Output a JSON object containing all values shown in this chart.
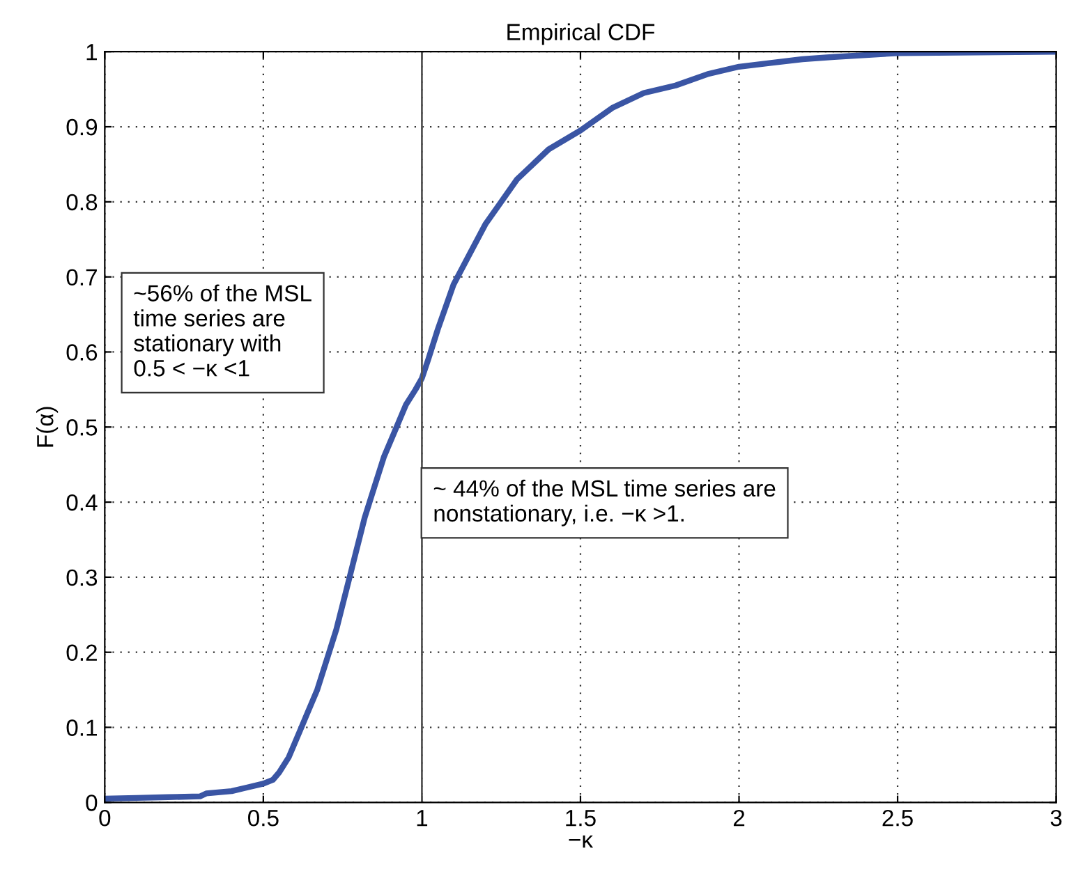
{
  "chart_data": {
    "type": "line",
    "title": "Empirical CDF",
    "xlabel": "−κ",
    "ylabel": "F(α)",
    "x": [
      0,
      0.1,
      0.2,
      0.3,
      0.32,
      0.4,
      0.45,
      0.5,
      0.53,
      0.55,
      0.58,
      0.6,
      0.62,
      0.64,
      0.67,
      0.7,
      0.73,
      0.76,
      0.79,
      0.82,
      0.85,
      0.88,
      0.92,
      0.95,
      0.98,
      1.0,
      1.02,
      1.05,
      1.1,
      1.15,
      1.2,
      1.25,
      1.3,
      1.35,
      1.4,
      1.5,
      1.6,
      1.7,
      1.8,
      1.9,
      2.0,
      2.1,
      2.2,
      2.3,
      2.5,
      3.0
    ],
    "series": [
      {
        "color": "#3a55a4",
        "values": [
          0.005,
          0.006,
          0.007,
          0.008,
          0.012,
          0.015,
          0.02,
          0.025,
          0.03,
          0.04,
          0.06,
          0.08,
          0.1,
          0.12,
          0.15,
          0.19,
          0.23,
          0.28,
          0.33,
          0.38,
          0.42,
          0.46,
          0.5,
          0.53,
          0.55,
          0.565,
          0.59,
          0.63,
          0.69,
          0.73,
          0.77,
          0.8,
          0.83,
          0.85,
          0.87,
          0.895,
          0.925,
          0.945,
          0.955,
          0.97,
          0.98,
          0.985,
          0.99,
          0.993,
          0.998,
          1.0
        ]
      }
    ],
    "xlim": [
      0,
      3
    ],
    "ylim": [
      0,
      1
    ],
    "xticks": [
      0,
      0.5,
      1,
      1.5,
      2,
      2.5,
      3
    ],
    "yticks": [
      0,
      0.1,
      0.2,
      0.3,
      0.4,
      0.5,
      0.6,
      0.7,
      0.8,
      0.9,
      1
    ],
    "grid": true,
    "line_style": "solid",
    "marker": "none",
    "ref_lines": [
      {
        "axis": "x",
        "value": 1,
        "color": "#555555"
      }
    ],
    "annotations": [
      "~56% of the MSL\ntime series are\nstationary with\n0.5 < −κ <1",
      "~ 44% of the MSL time series are\nnonstationary, i.e. −κ >1."
    ]
  }
}
